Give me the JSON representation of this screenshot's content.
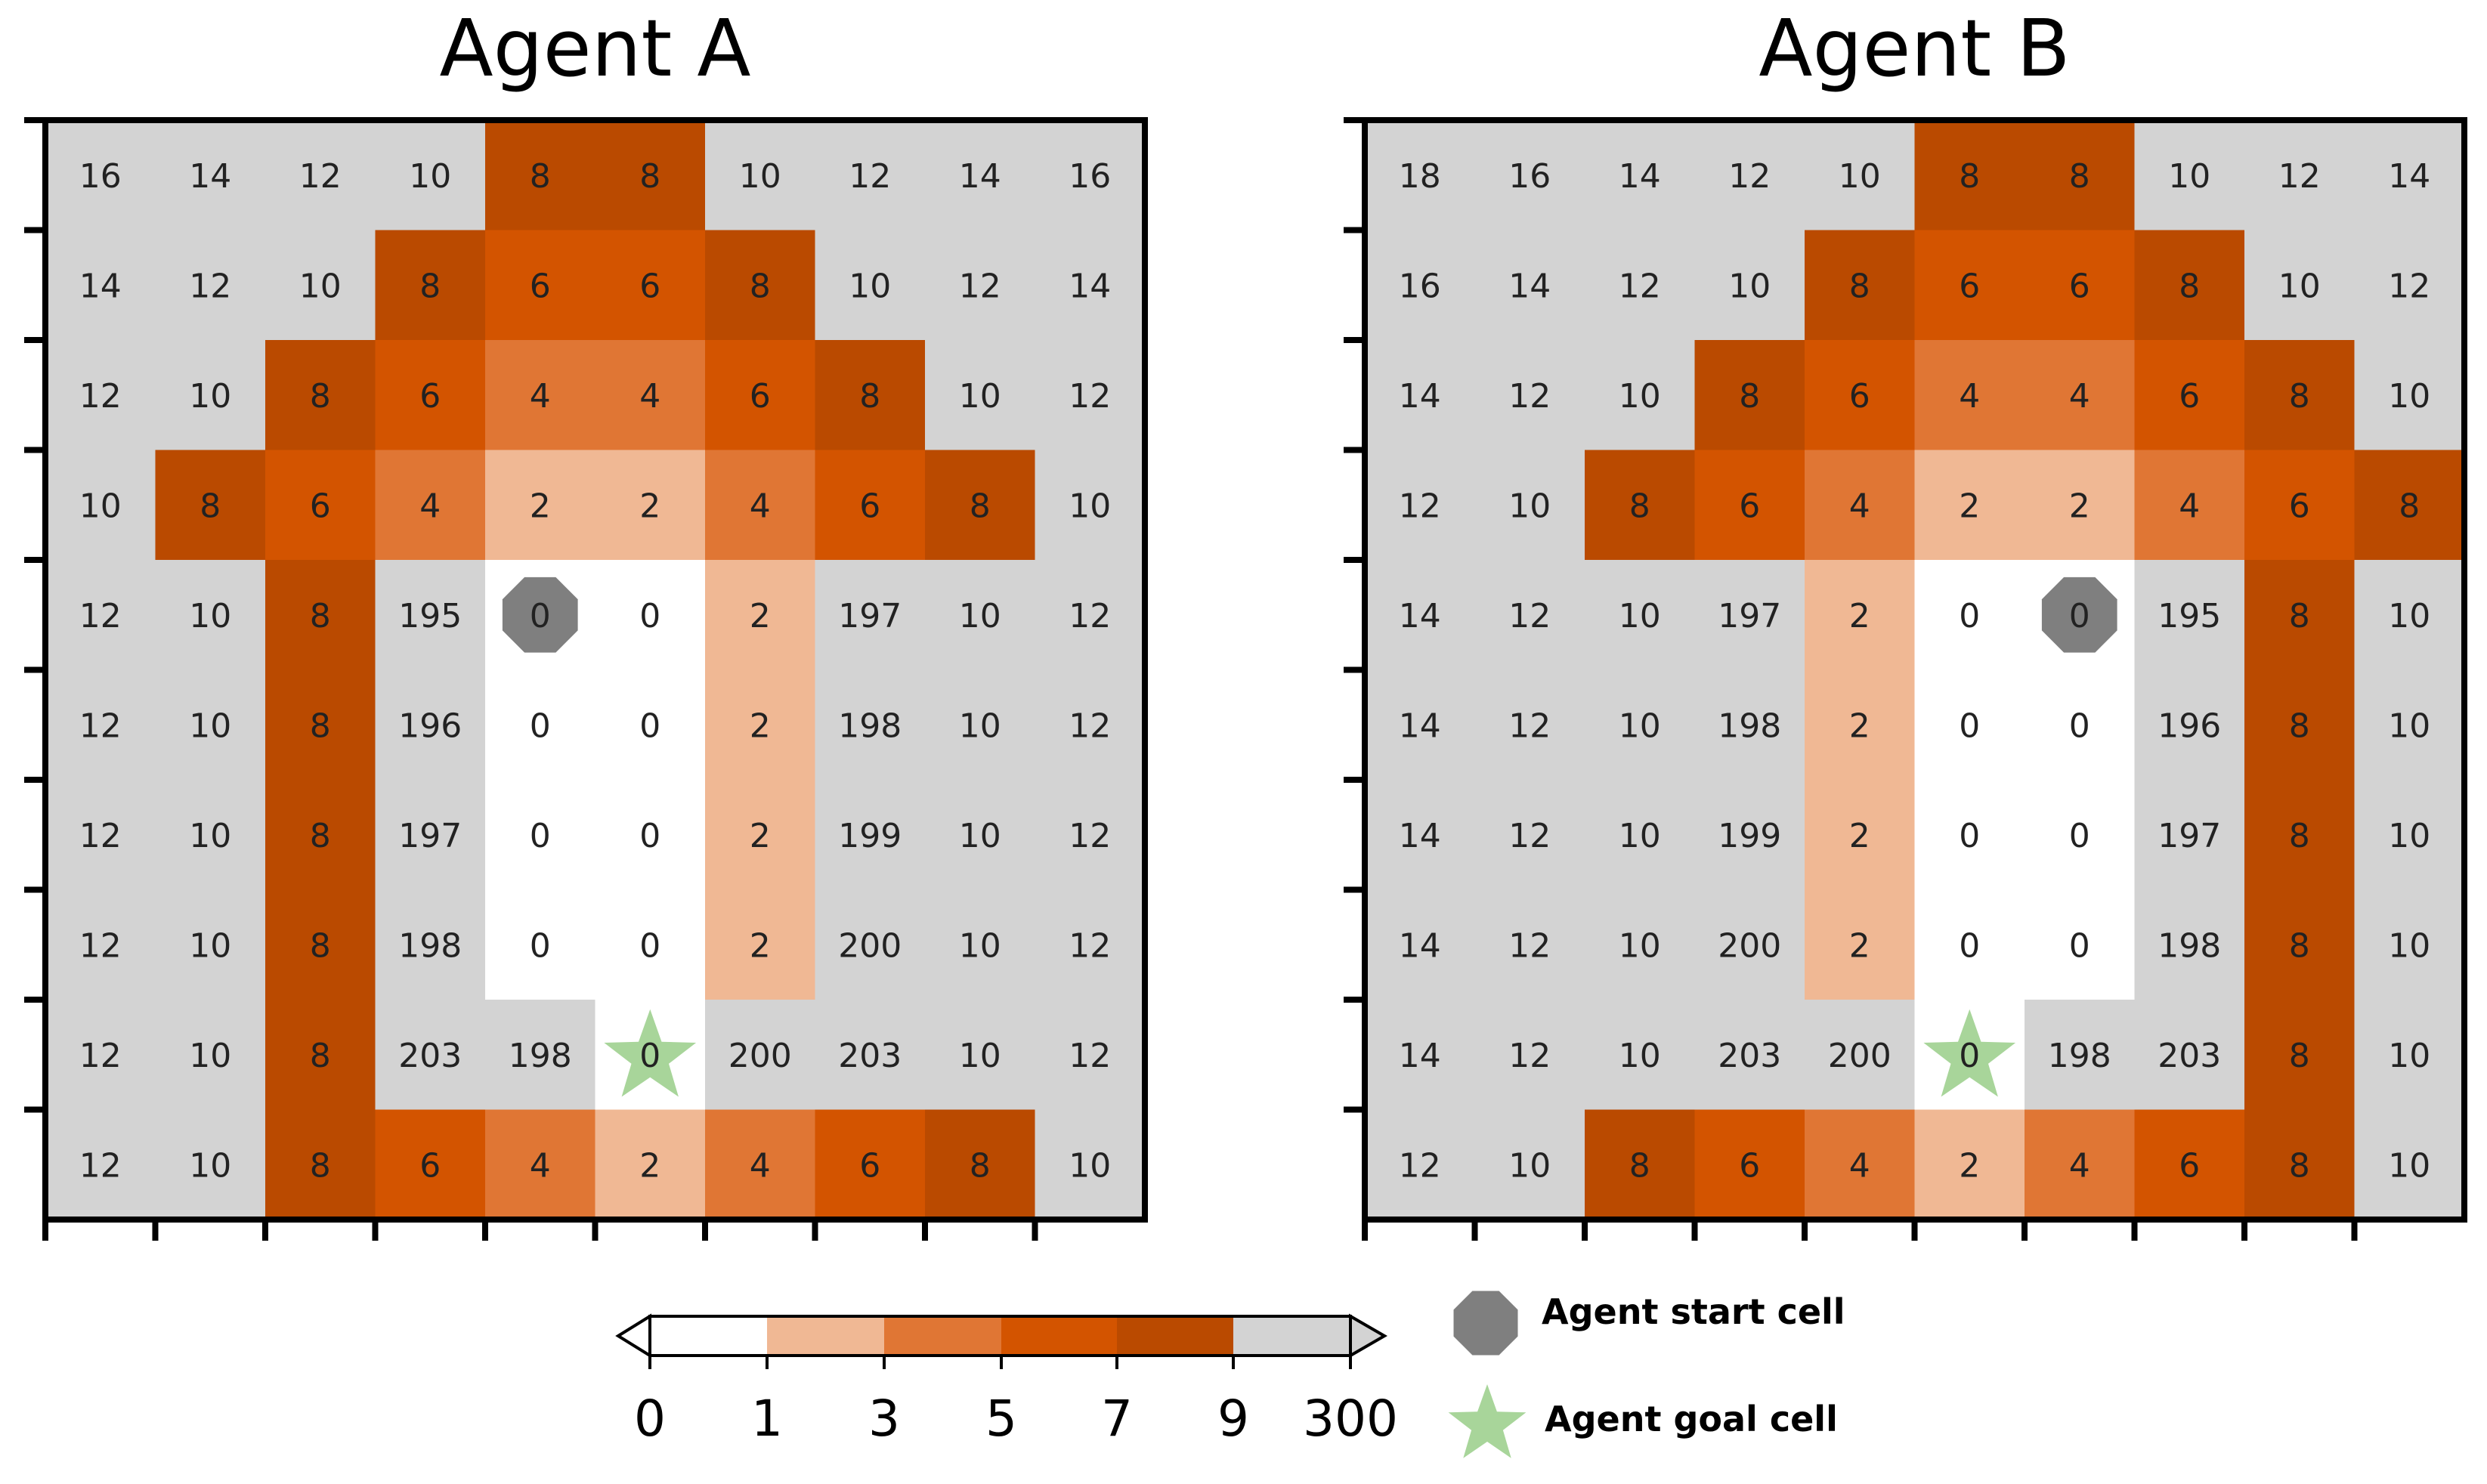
{
  "chart_data": [
    {
      "type": "heatmap",
      "title": "Agent A",
      "rows": 10,
      "cols": 10,
      "values": [
        [
          16,
          14,
          12,
          10,
          8,
          8,
          10,
          12,
          14,
          16
        ],
        [
          14,
          12,
          10,
          8,
          6,
          6,
          8,
          10,
          12,
          14
        ],
        [
          12,
          10,
          8,
          6,
          4,
          4,
          6,
          8,
          10,
          12
        ],
        [
          10,
          8,
          6,
          4,
          2,
          2,
          4,
          6,
          8,
          10
        ],
        [
          12,
          10,
          8,
          195,
          0,
          0,
          2,
          197,
          10,
          12
        ],
        [
          12,
          10,
          8,
          196,
          0,
          0,
          2,
          198,
          10,
          12
        ],
        [
          12,
          10,
          8,
          197,
          0,
          0,
          2,
          199,
          10,
          12
        ],
        [
          12,
          10,
          8,
          198,
          0,
          0,
          2,
          200,
          10,
          12
        ],
        [
          12,
          10,
          8,
          203,
          198,
          0,
          200,
          203,
          10,
          12
        ],
        [
          12,
          10,
          8,
          6,
          4,
          2,
          4,
          6,
          8,
          10
        ]
      ],
      "start_cell": {
        "row": 4,
        "col": 4
      },
      "goal_cell": {
        "row": 8,
        "col": 5
      }
    },
    {
      "type": "heatmap",
      "title": "Agent B",
      "rows": 10,
      "cols": 10,
      "values": [
        [
          18,
          16,
          14,
          12,
          10,
          8,
          8,
          10,
          12,
          14
        ],
        [
          16,
          14,
          12,
          10,
          8,
          6,
          6,
          8,
          10,
          12
        ],
        [
          14,
          12,
          10,
          8,
          6,
          4,
          4,
          6,
          8,
          10
        ],
        [
          12,
          10,
          8,
          6,
          4,
          2,
          2,
          4,
          6,
          8
        ],
        [
          14,
          12,
          10,
          197,
          2,
          0,
          0,
          195,
          8,
          10
        ],
        [
          14,
          12,
          10,
          198,
          2,
          0,
          0,
          196,
          8,
          10
        ],
        [
          14,
          12,
          10,
          199,
          2,
          0,
          0,
          197,
          8,
          10
        ],
        [
          14,
          12,
          10,
          200,
          2,
          0,
          0,
          198,
          8,
          10
        ],
        [
          14,
          12,
          10,
          203,
          200,
          0,
          198,
          203,
          8,
          10
        ],
        [
          12,
          10,
          8,
          6,
          4,
          2,
          4,
          6,
          8,
          10
        ]
      ],
      "start_cell": {
        "row": 4,
        "col": 6
      },
      "goal_cell": {
        "row": 8,
        "col": 5
      }
    }
  ],
  "colorbar": {
    "boundaries": [
      0,
      1,
      3,
      5,
      7,
      9,
      300
    ],
    "tick_labels": [
      "0",
      "1",
      "3",
      "5",
      "7",
      "9",
      "300"
    ],
    "colors": [
      "#ffffff",
      "#f0b894",
      "#e07634",
      "#d35400",
      "#ba4a00",
      "#d3d3d3"
    ],
    "extend": "both"
  },
  "legend": {
    "start_label": "Agent start cell",
    "goal_label": "Agent goal cell",
    "start_color": "#7f7f7f",
    "goal_color": "#a8d59a"
  }
}
